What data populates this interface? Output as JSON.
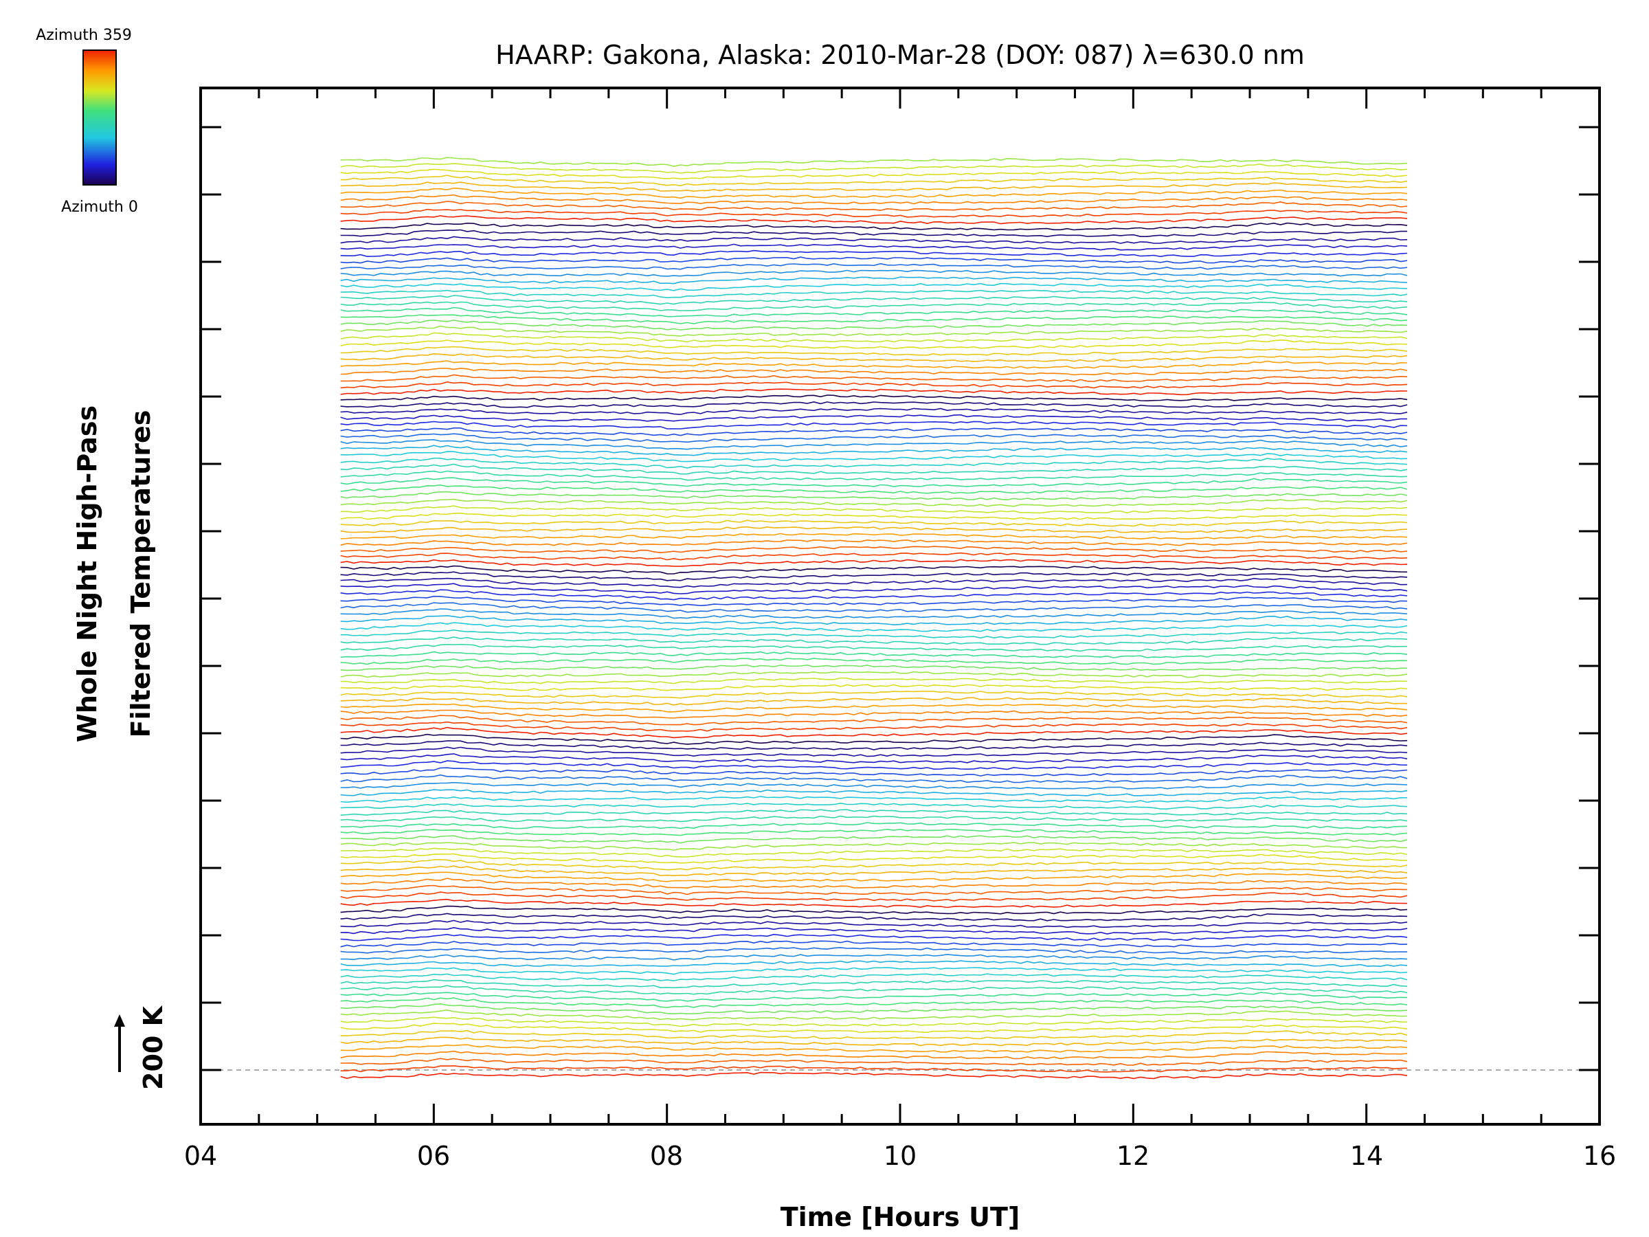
{
  "chart_data": {
    "type": "line",
    "title": "HAARP: Gakona,  Alaska: 2010-Mar-28 (DOY: 087) λ=630.0 nm",
    "xlabel": "Time [Hours UT]",
    "ylabel": [
      "Whole Night High-Pass",
      "Filtered Temperatures"
    ],
    "x_ticks": [
      "04",
      "06",
      "08",
      "10",
      "12",
      "14",
      "16"
    ],
    "xlim": [
      4,
      16
    ],
    "x_start": 5.2,
    "x_end": 14.35,
    "scale_label": "200 K",
    "colorbar": {
      "top_label": "Azimuth 359",
      "bottom_label": "Azimuth 0",
      "colormap": "rainbow"
    },
    "series_count": 140,
    "azimuth_cycle": 26,
    "grid": false,
    "reference_line": "dashed baseline at 0 K offset",
    "colors": {
      "axis": "#000000",
      "reference_line": "#aaaaaa",
      "background": "#ffffff"
    }
  }
}
